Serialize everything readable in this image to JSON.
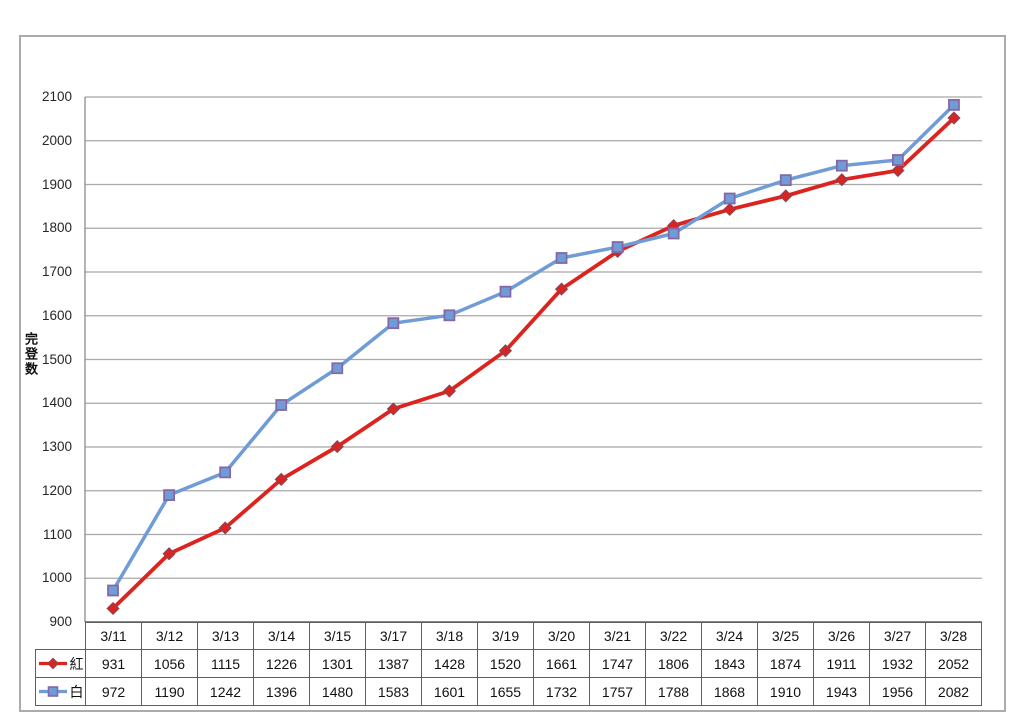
{
  "chart_data": {
    "type": "line",
    "title": "",
    "xlabel": "",
    "ylabel": "完登数",
    "categories": [
      "3/11",
      "3/12",
      "3/13",
      "3/14",
      "3/15",
      "3/17",
      "3/18",
      "3/19",
      "3/20",
      "3/21",
      "3/22",
      "3/24",
      "3/25",
      "3/26",
      "3/27",
      "3/28"
    ],
    "series": [
      {
        "name": "紅",
        "values": [
          931,
          1056,
          1115,
          1226,
          1301,
          1387,
          1428,
          1520,
          1661,
          1747,
          1806,
          1843,
          1874,
          1911,
          1932,
          2052
        ],
        "color": "#dd231d",
        "marker": "diamond",
        "marker_border": "#93404f",
        "line_width": 3.8
      },
      {
        "name": "白",
        "values": [
          972,
          1190,
          1242,
          1396,
          1480,
          1583,
          1601,
          1655,
          1732,
          1757,
          1788,
          1868,
          1910,
          1943,
          1956,
          2082
        ],
        "color": "#6f9cd6",
        "marker": "square",
        "marker_border": "#8568a8",
        "line_width": 3.5
      }
    ],
    "ylim": [
      900,
      2100
    ],
    "ytick_step": 100,
    "grid": "horizontal",
    "legend_position": "data-table-left",
    "colors": {
      "gridline": "#a8a8a8",
      "axis": "#8c8c8c",
      "table_border": "#5f5f5f",
      "text": "#111111",
      "frame_border": "#ababab",
      "background": "#ffffff"
    }
  }
}
